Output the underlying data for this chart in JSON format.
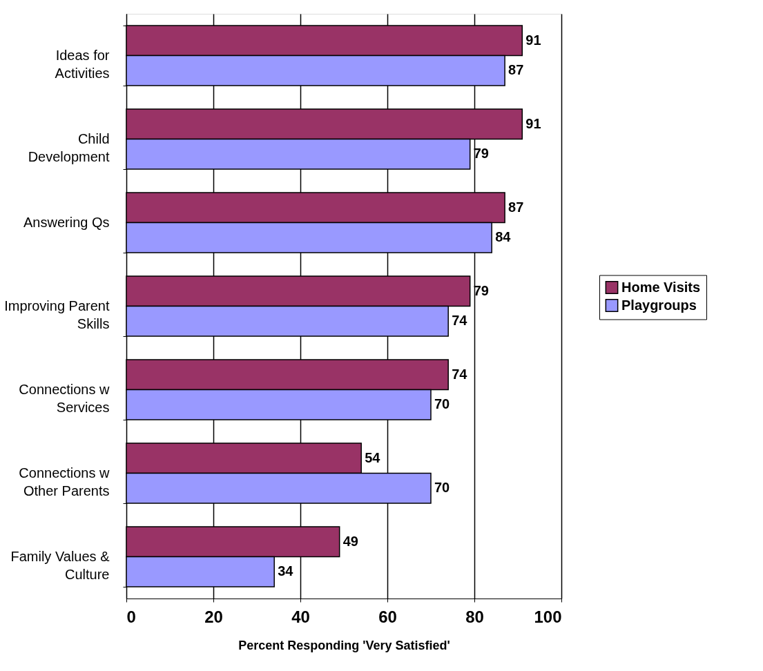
{
  "chart_data": {
    "type": "bar",
    "orientation": "horizontal",
    "xlabel": "Percent Responding 'Very Satisfied'",
    "categories": [
      "Ideas for\nActivities",
      "Child\nDevelopment",
      "Answering Qs",
      "Improving Parent\nSkills",
      "Connections w\nServices",
      "Connections w\nOther Parents",
      "Family Values &\nCulture"
    ],
    "series": [
      {
        "name": "Home Visits",
        "color": "#993366",
        "values": [
          91,
          91,
          87,
          79,
          74,
          54,
          49
        ]
      },
      {
        "name": "Playgroups",
        "color": "#9999ff",
        "values": [
          87,
          79,
          84,
          74,
          70,
          70,
          34
        ]
      }
    ],
    "xlim": [
      0,
      100
    ],
    "xticks": [
      0,
      20,
      40,
      60,
      80,
      100
    ],
    "grid": "x",
    "legend": "right",
    "data_labels": true
  }
}
